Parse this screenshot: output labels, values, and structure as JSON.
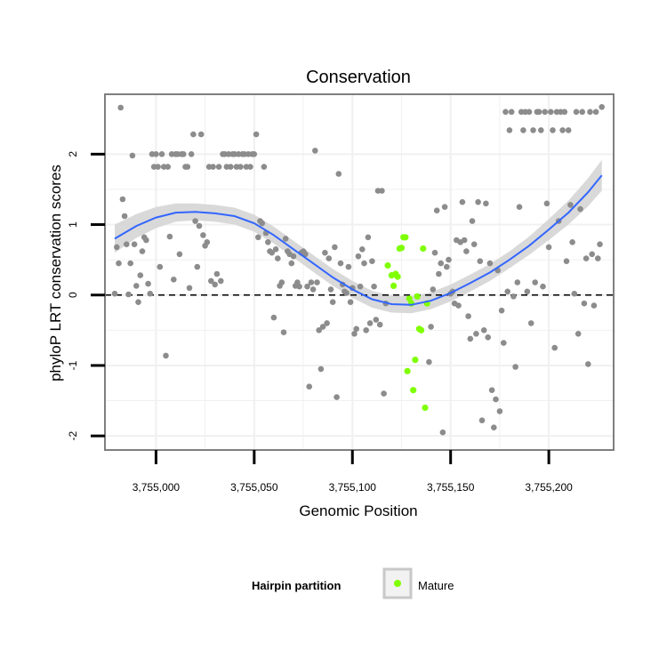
{
  "chart_data": {
    "type": "scatter",
    "title": "Conservation",
    "xlabel": "Genomic Position",
    "ylabel": "phyloP LRT conservation scores",
    "xlim": [
      3754974,
      3755233
    ],
    "ylim": [
      -2.2,
      2.85
    ],
    "x_ticks": [
      3755000,
      3755050,
      3755100,
      3755150,
      3755200
    ],
    "x_tick_labels": [
      "3,755,000",
      "3,755,050",
      "3,755,100",
      "3,755,150",
      "3,755,200"
    ],
    "y_ticks": [
      -2,
      -1,
      0,
      1,
      2
    ],
    "y_tick_labels": [
      "-2",
      "-1",
      "0",
      "1",
      "2"
    ],
    "grid": true,
    "reference_line": {
      "y": 0,
      "style": "dashed"
    },
    "legend": {
      "title": "Hairpin partition",
      "placement": "bottom",
      "entries": [
        "Mature"
      ]
    },
    "colors": {
      "other": "#8c8c8c",
      "mature": "#7fff00",
      "smooth": "#3366ff",
      "band": "#d5d5d5",
      "panel_border": "#7f7f7f",
      "grid": "#f0f0f0"
    },
    "series": [
      {
        "name": "Mature",
        "points": [
          [
            3755118,
            0.42
          ],
          [
            3755120,
            0.28
          ],
          [
            3755121,
            0.13
          ],
          [
            3755122,
            0.3
          ],
          [
            3755123,
            0.26
          ],
          [
            3755124,
            0.66
          ],
          [
            3755125,
            0.67
          ],
          [
            3755126,
            0.82
          ],
          [
            3755127,
            0.82
          ],
          [
            3755128,
            -1.08
          ],
          [
            3755129,
            -0.05
          ],
          [
            3755130,
            -0.12
          ],
          [
            3755131,
            -1.35
          ],
          [
            3755132,
            -0.92
          ],
          [
            3755133,
            -0.02
          ],
          [
            3755134,
            -0.48
          ],
          [
            3755135,
            -0.5
          ],
          [
            3755136,
            0.66
          ],
          [
            3755137,
            -1.6
          ],
          [
            3755138,
            -0.12
          ]
        ]
      },
      {
        "points": [
          [
            3754979,
            0.02
          ],
          [
            3754980,
            0.68
          ],
          [
            3754981,
            0.45
          ],
          [
            3754982,
            2.66
          ],
          [
            3754983,
            1.36
          ],
          [
            3754984,
            1.12
          ],
          [
            3754985,
            0.72
          ],
          [
            3754986,
            0.01
          ],
          [
            3754987,
            0.45
          ],
          [
            3754988,
            1.98
          ],
          [
            3754989,
            0.72
          ],
          [
            3754990,
            0.13
          ],
          [
            3754991,
            -0.1
          ],
          [
            3754992,
            0.28
          ],
          [
            3754993,
            0.62
          ],
          [
            3754994,
            0.82
          ],
          [
            3754995,
            0.78
          ],
          [
            3754996,
            0.16
          ],
          [
            3754997,
            0.02
          ],
          [
            3754998,
            2.0
          ],
          [
            3754999,
            1.82
          ],
          [
            3755000,
            2.0
          ],
          [
            3755001,
            1.82
          ],
          [
            3755002,
            0.4
          ],
          [
            3755003,
            2.0
          ],
          [
            3755004,
            1.82
          ],
          [
            3755005,
            -0.86
          ],
          [
            3755006,
            1.82
          ],
          [
            3755007,
            0.83
          ],
          [
            3755008,
            2.0
          ],
          [
            3755009,
            0.22
          ],
          [
            3755010,
            2.0
          ],
          [
            3755011,
            2.0
          ],
          [
            3755012,
            0.58
          ],
          [
            3755013,
            2.0
          ],
          [
            3755014,
            2.0
          ],
          [
            3755015,
            1.82
          ],
          [
            3755016,
            1.82
          ],
          [
            3755017,
            0.1
          ],
          [
            3755018,
            2.0
          ],
          [
            3755019,
            2.28
          ],
          [
            3755020,
            1.05
          ],
          [
            3755021,
            0.4
          ],
          [
            3755022,
            0.98
          ],
          [
            3755023,
            2.28
          ],
          [
            3755024,
            0.85
          ],
          [
            3755025,
            0.7
          ],
          [
            3755026,
            0.75
          ],
          [
            3755027,
            1.82
          ],
          [
            3755028,
            0.2
          ],
          [
            3755029,
            1.82
          ],
          [
            3755030,
            0.15
          ],
          [
            3755031,
            0.3
          ],
          [
            3755032,
            1.82
          ],
          [
            3755033,
            0.2
          ],
          [
            3755034,
            2.0
          ],
          [
            3755035,
            2.0
          ],
          [
            3755036,
            1.82
          ],
          [
            3755037,
            2.0
          ],
          [
            3755038,
            1.82
          ],
          [
            3755039,
            2.0
          ],
          [
            3755040,
            2.0
          ],
          [
            3755041,
            1.82
          ],
          [
            3755042,
            2.0
          ],
          [
            3755043,
            1.82
          ],
          [
            3755044,
            2.0
          ],
          [
            3755045,
            2.0
          ],
          [
            3755046,
            1.82
          ],
          [
            3755047,
            2.0
          ],
          [
            3755048,
            1.82
          ],
          [
            3755049,
            2.0
          ],
          [
            3755050,
            2.0
          ],
          [
            3755051,
            2.28
          ],
          [
            3755052,
            0.82
          ],
          [
            3755053,
            1.05
          ],
          [
            3755054,
            1.02
          ],
          [
            3755055,
            1.82
          ],
          [
            3755056,
            0.88
          ],
          [
            3755057,
            0.75
          ],
          [
            3755058,
            0.62
          ],
          [
            3755059,
            0.6
          ],
          [
            3755060,
            -0.32
          ],
          [
            3755061,
            0.65
          ],
          [
            3755062,
            0.52
          ],
          [
            3755063,
            0.13
          ],
          [
            3755064,
            0.18
          ],
          [
            3755065,
            -0.53
          ],
          [
            3755066,
            0.8
          ],
          [
            3755067,
            0.62
          ],
          [
            3755068,
            0.58
          ],
          [
            3755069,
            0.45
          ],
          [
            3755070,
            0.55
          ],
          [
            3755071,
            0.13
          ],
          [
            3755072,
            0.18
          ],
          [
            3755073,
            0.12
          ],
          [
            3755074,
            0.6
          ],
          [
            3755075,
            0.62
          ],
          [
            3755076,
            0.58
          ],
          [
            3755077,
            0.12
          ],
          [
            3755078,
            -1.3
          ],
          [
            3755079,
            0.18
          ],
          [
            3755080,
            0.08
          ],
          [
            3755081,
            2.05
          ],
          [
            3755082,
            0.18
          ],
          [
            3755083,
            -0.5
          ],
          [
            3755084,
            -1.05
          ],
          [
            3755085,
            -0.45
          ],
          [
            3755086,
            0.6
          ],
          [
            3755087,
            -0.4
          ],
          [
            3755088,
            0.52
          ],
          [
            3755089,
            0.08
          ],
          [
            3755090,
            -0.1
          ],
          [
            3755091,
            0.68
          ],
          [
            3755092,
            -1.45
          ],
          [
            3755093,
            1.72
          ],
          [
            3755094,
            0.45
          ],
          [
            3755095,
            0.15
          ],
          [
            3755096,
            0.05
          ],
          [
            3755097,
            0.03
          ],
          [
            3755098,
            0.4
          ],
          [
            3755099,
            -0.1
          ],
          [
            3755100,
            0.1
          ],
          [
            3755101,
            -0.55
          ],
          [
            3755102,
            -0.48
          ],
          [
            3755103,
            0.55
          ],
          [
            3755104,
            0.12
          ],
          [
            3755105,
            0.65
          ],
          [
            3755106,
            0.45
          ],
          [
            3755107,
            -0.5
          ],
          [
            3755108,
            0.82
          ],
          [
            3755109,
            -0.4
          ],
          [
            3755110,
            0.48
          ],
          [
            3755111,
            0.12
          ],
          [
            3755112,
            -0.35
          ],
          [
            3755113,
            1.48
          ],
          [
            3755114,
            -0.42
          ],
          [
            3755115,
            1.48
          ],
          [
            3755116,
            -1.4
          ],
          [
            3755117,
            -0.12
          ],
          [
            3755139,
            -0.95
          ],
          [
            3755140,
            -0.45
          ],
          [
            3755141,
            0.08
          ],
          [
            3755142,
            0.6
          ],
          [
            3755143,
            1.2
          ],
          [
            3755144,
            0.3
          ],
          [
            3755145,
            0.45
          ],
          [
            3755146,
            -1.95
          ],
          [
            3755147,
            1.25
          ],
          [
            3755148,
            0.4
          ],
          [
            3755149,
            0.5
          ],
          [
            3755150,
            0.02
          ],
          [
            3755151,
            0.05
          ],
          [
            3755152,
            -0.12
          ],
          [
            3755153,
            0.78
          ],
          [
            3755154,
            -0.15
          ],
          [
            3755155,
            0.75
          ],
          [
            3755156,
            1.32
          ],
          [
            3755157,
            0.78
          ],
          [
            3755158,
            0.62
          ],
          [
            3755159,
            -0.3
          ],
          [
            3755160,
            -0.62
          ],
          [
            3755161,
            1.05
          ],
          [
            3755162,
            0.72
          ],
          [
            3755163,
            -0.55
          ],
          [
            3755164,
            1.32
          ],
          [
            3755165,
            0.48
          ],
          [
            3755166,
            -1.78
          ],
          [
            3755167,
            -0.5
          ],
          [
            3755168,
            1.3
          ],
          [
            3755169,
            -0.6
          ],
          [
            3755170,
            0.45
          ],
          [
            3755171,
            -1.35
          ],
          [
            3755172,
            -1.88
          ],
          [
            3755173,
            -1.48
          ],
          [
            3755174,
            0.35
          ],
          [
            3755175,
            -1.65
          ],
          [
            3755176,
            -0.22
          ],
          [
            3755177,
            -0.68
          ],
          [
            3755178,
            2.6
          ],
          [
            3755179,
            0.05
          ],
          [
            3755180,
            2.34
          ],
          [
            3755181,
            2.6
          ],
          [
            3755182,
            -0.02
          ],
          [
            3755183,
            -1.02
          ],
          [
            3755184,
            0.18
          ],
          [
            3755185,
            1.25
          ],
          [
            3755186,
            2.6
          ],
          [
            3755187,
            2.34
          ],
          [
            3755188,
            2.6
          ],
          [
            3755189,
            0.05
          ],
          [
            3755190,
            2.6
          ],
          [
            3755191,
            -0.4
          ],
          [
            3755192,
            2.34
          ],
          [
            3755193,
            0.18
          ],
          [
            3755194,
            2.6
          ],
          [
            3755195,
            2.6
          ],
          [
            3755196,
            2.34
          ],
          [
            3755197,
            0.12
          ],
          [
            3755198,
            2.6
          ],
          [
            3755199,
            1.3
          ],
          [
            3755200,
            0.68
          ],
          [
            3755201,
            2.6
          ],
          [
            3755202,
            2.34
          ],
          [
            3755203,
            -0.75
          ],
          [
            3755204,
            2.6
          ],
          [
            3755205,
            1.05
          ],
          [
            3755206,
            2.6
          ],
          [
            3755207,
            2.34
          ],
          [
            3755208,
            2.6
          ],
          [
            3755209,
            0.48
          ],
          [
            3755210,
            2.34
          ],
          [
            3755211,
            1.28
          ],
          [
            3755212,
            0.75
          ],
          [
            3755213,
            0.02
          ],
          [
            3755214,
            2.6
          ],
          [
            3755215,
            -0.55
          ],
          [
            3755216,
            1.22
          ],
          [
            3755217,
            2.6
          ],
          [
            3755218,
            -0.12
          ],
          [
            3755219,
            0.52
          ],
          [
            3755220,
            -0.98
          ],
          [
            3755221,
            2.6
          ],
          [
            3755222,
            0.58
          ],
          [
            3755223,
            -0.15
          ],
          [
            3755224,
            2.6
          ],
          [
            3755225,
            0.52
          ],
          [
            3755226,
            0.72
          ],
          [
            3755227,
            2.67
          ]
        ]
      }
    ],
    "smooth": {
      "x": [
        3754979,
        3754990,
        3755000,
        3755010,
        3755020,
        3755030,
        3755040,
        3755050,
        3755060,
        3755070,
        3755080,
        3755090,
        3755100,
        3755110,
        3755120,
        3755130,
        3755140,
        3755150,
        3755160,
        3755170,
        3755180,
        3755190,
        3755200,
        3755210,
        3755220,
        3755227
      ],
      "y": [
        0.8,
        0.98,
        1.1,
        1.17,
        1.18,
        1.16,
        1.12,
        1.02,
        0.85,
        0.65,
        0.45,
        0.25,
        0.08,
        -0.06,
        -0.13,
        -0.14,
        -0.08,
        0.03,
        0.17,
        0.32,
        0.5,
        0.7,
        0.93,
        1.17,
        1.46,
        1.7
      ],
      "band": [
        0.2,
        0.17,
        0.15,
        0.13,
        0.12,
        0.12,
        0.12,
        0.12,
        0.12,
        0.12,
        0.12,
        0.12,
        0.12,
        0.12,
        0.12,
        0.12,
        0.12,
        0.12,
        0.12,
        0.12,
        0.12,
        0.13,
        0.15,
        0.17,
        0.2,
        0.22
      ]
    }
  }
}
